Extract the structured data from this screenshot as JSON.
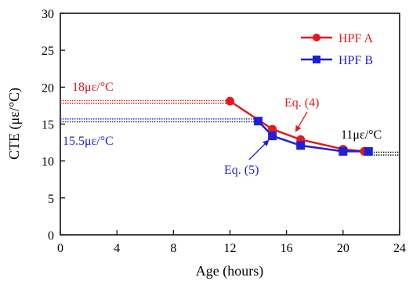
{
  "chart_data": {
    "type": "line",
    "xlabel": "Age (hours)",
    "ylabel": "CTE (με/°C)",
    "xlim": [
      0,
      24
    ],
    "ylim": [
      0,
      30
    ],
    "xticks": [
      0,
      4,
      8,
      12,
      16,
      20,
      24
    ],
    "yticks": [
      0,
      5,
      10,
      15,
      20,
      25,
      30
    ],
    "grid": false,
    "legend_position": "top-right",
    "series": [
      {
        "name": "HPF A",
        "color": "#e31a1c",
        "marker": "circle",
        "x": [
          12,
          15,
          17,
          20,
          21.5
        ],
        "y": [
          18.1,
          14.3,
          12.9,
          11.6,
          11.3
        ]
      },
      {
        "name": "HPF B",
        "color": "#1f1fd6",
        "marker": "square",
        "x": [
          14,
          15,
          17,
          20,
          21.8
        ],
        "y": [
          15.4,
          13.4,
          12.1,
          11.3,
          11.3
        ]
      }
    ],
    "reference_lines": [
      {
        "label": "18με/°C",
        "y": 18,
        "x_range": [
          0,
          12
        ],
        "color": "#e31a1c"
      },
      {
        "label": "15.5με/°C",
        "y": 15.5,
        "x_range": [
          0,
          14
        ],
        "color": "#1f1fd6"
      },
      {
        "label": "11με/°C",
        "y": 11,
        "x_range": [
          21.5,
          24
        ],
        "color": "#000000"
      }
    ],
    "annotations": [
      {
        "text": "Eq. (4)",
        "color": "#e31a1c",
        "target": [
          16.6,
          13.2
        ]
      },
      {
        "text": "Eq. (5)",
        "color": "#1f1fd6",
        "target": [
          15.1,
          13.0
        ]
      }
    ]
  }
}
